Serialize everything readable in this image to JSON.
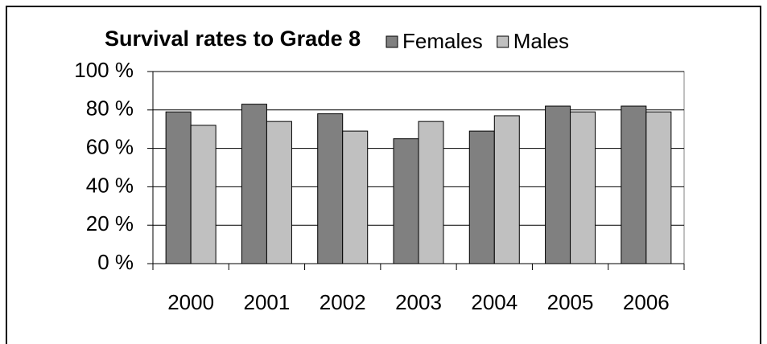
{
  "chart_data": {
    "type": "bar",
    "title": "Survival rates to Grade 8",
    "categories": [
      "2000",
      "2001",
      "2002",
      "2003",
      "2004",
      "2005",
      "2006"
    ],
    "series": [
      {
        "name": "Females",
        "color": "#808080",
        "values": [
          79,
          83,
          78,
          65,
          69,
          82,
          82
        ]
      },
      {
        "name": "Males",
        "color": "#c0c0c0",
        "values": [
          72,
          74,
          69,
          74,
          77,
          79,
          79
        ]
      }
    ],
    "ylim": [
      0,
      100
    ],
    "yticks": [
      {
        "value": 0,
        "label": "0 %"
      },
      {
        "value": 20,
        "label": "20 %"
      },
      {
        "value": 40,
        "label": "40 %"
      },
      {
        "value": 60,
        "label": "60 %"
      },
      {
        "value": 80,
        "label": "80 %"
      },
      {
        "value": 100,
        "label": "100 %"
      }
    ],
    "grid": true,
    "legend": "top-right"
  }
}
